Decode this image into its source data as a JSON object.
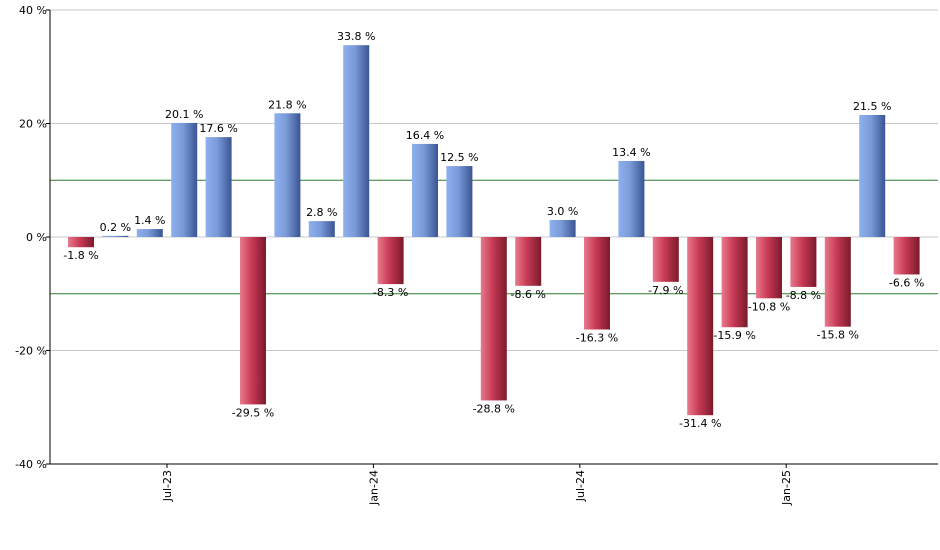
{
  "chart_data": {
    "type": "bar",
    "title": "",
    "xlabel": "",
    "ylabel": "",
    "ylim": [
      -40,
      40
    ],
    "yticks": [
      -40,
      -20,
      0,
      20,
      40
    ],
    "ytick_labels": [
      "-40 %",
      "-20 %",
      "0 %",
      "20 %",
      "40 %"
    ],
    "reference_lines": [
      10,
      -10
    ],
    "x_tick_labels": [
      {
        "label": "Jul-23",
        "index": 2.5
      },
      {
        "label": "Jan-24",
        "index": 8.5
      },
      {
        "label": "Jul-24",
        "index": 14.5
      },
      {
        "label": "Jan-25",
        "index": 20.5
      }
    ],
    "values": [
      -1.8,
      0.2,
      1.4,
      20.1,
      17.6,
      -29.5,
      21.8,
      2.8,
      33.8,
      -8.3,
      16.4,
      12.5,
      -28.8,
      -8.6,
      3.0,
      -16.3,
      13.4,
      -7.9,
      -31.4,
      -15.9,
      -10.8,
      -8.8,
      -15.8,
      21.5,
      -6.6
    ],
    "labels": [
      "-1.8 %",
      "0.2 %",
      "1.4 %",
      "20.1 %",
      "17.6 %",
      "-29.5 %",
      "21.8 %",
      "2.8 %",
      "33.8 %",
      "-8.3 %",
      "16.4 %",
      "12.5 %",
      "-28.8 %",
      "-8.6 %",
      "3.0 %",
      "-16.3 %",
      "13.4 %",
      "-7.9 %",
      "-31.4 %",
      "-15.9 %",
      "-10.8 %",
      "-8.8 %",
      "-15.8 %",
      "21.5 %",
      "-6.6 %"
    ],
    "colors": {
      "positive": "#6f8fd6",
      "negative": "#c8324f",
      "grid": "#c8c8c8",
      "reference": "#2e7d32",
      "axis": "#000000"
    }
  }
}
